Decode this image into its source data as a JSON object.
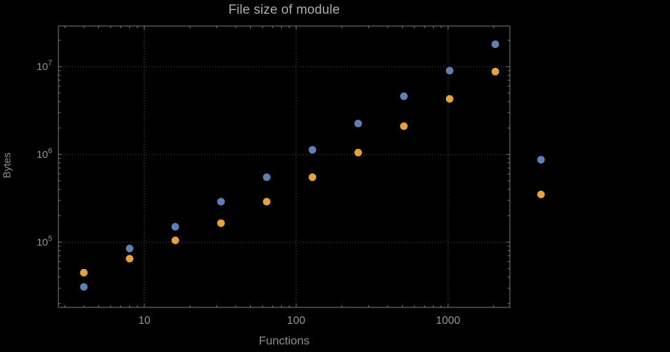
{
  "chart_data": {
    "type": "scatter",
    "title": "File size of module",
    "xlabel": "Functions",
    "ylabel": "Bytes",
    "xscale": "log",
    "yscale": "log",
    "xlim": [
      2.72,
      2554
    ],
    "ylim": [
      18100,
      29000000
    ],
    "grid": "dotted",
    "legend": null,
    "x": [
      4,
      8,
      16,
      32,
      64,
      128,
      256,
      512,
      1024,
      2048,
      4096
    ],
    "series": [
      {
        "name": "blue",
        "color": "#5e81b5",
        "values": [
          31000,
          85000,
          150000,
          290000,
          550000,
          1130000,
          2250000,
          4600000,
          9000000,
          18000000,
          870000
        ]
      },
      {
        "name": "orange",
        "color": "#e5a33c",
        "values": [
          45000,
          65000,
          105000,
          165000,
          290000,
          550000,
          1050000,
          2100000,
          4300000,
          8800000,
          350000
        ]
      }
    ],
    "x_ticks": [
      10,
      100,
      1000
    ],
    "x_tick_labels": [
      "10",
      "100",
      "1000"
    ],
    "y_ticks": [
      100000,
      1000000,
      10000000
    ],
    "y_tick_base": "10",
    "y_tick_exponents": [
      "5",
      "6",
      "7"
    ]
  },
  "colors": {
    "background": "#000000",
    "frame": "#818181",
    "grid": "#5c5c5c",
    "title_text": "#aeaeae",
    "label_text": "#8f8f8f",
    "tick_text": "#949494"
  }
}
